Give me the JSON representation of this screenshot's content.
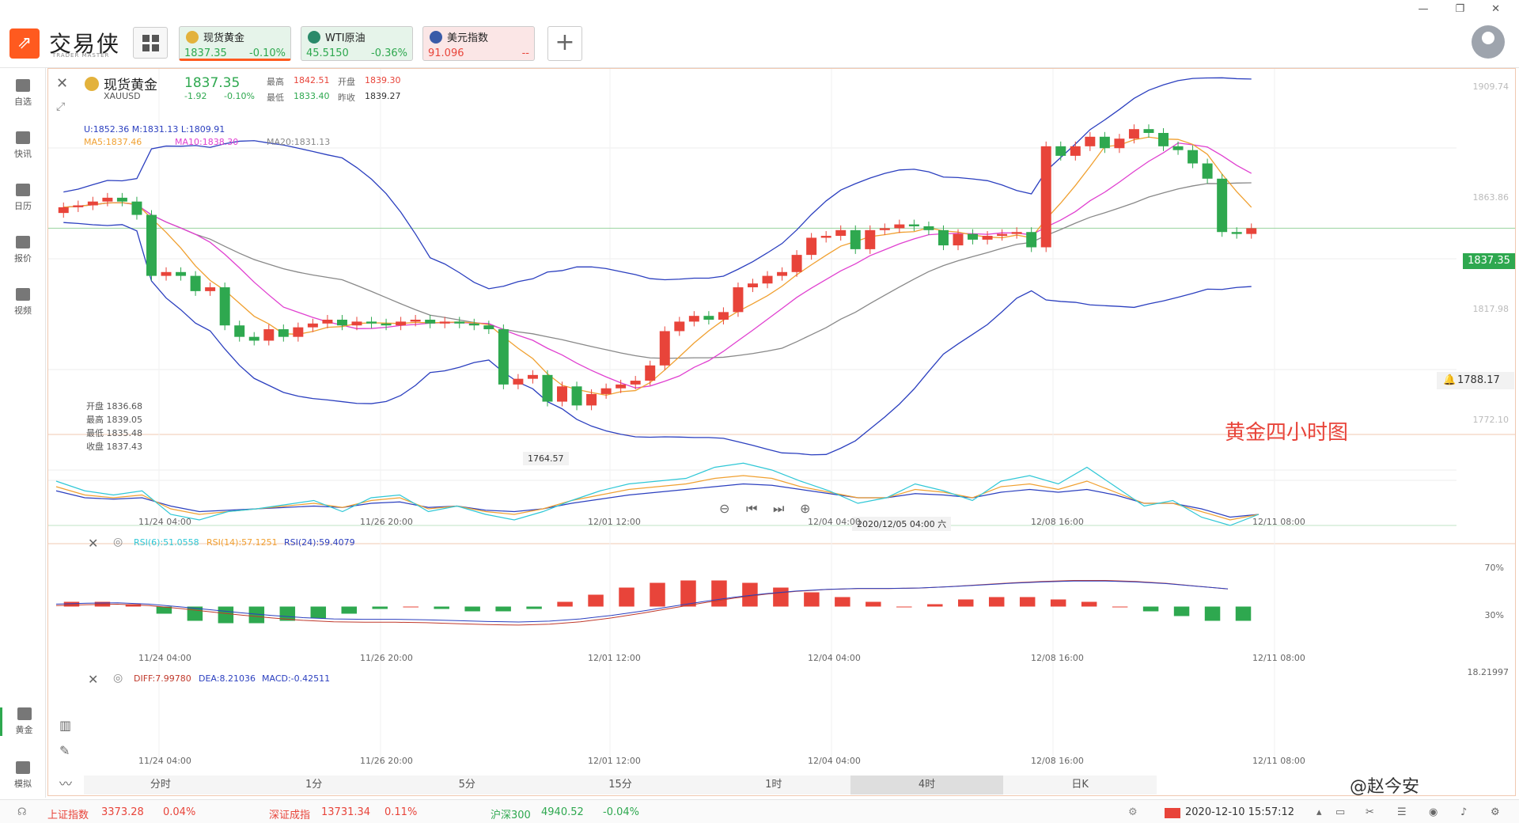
{
  "app": {
    "name": "交易侠",
    "subtitle": "TRADER MASTER",
    "window_controls": [
      "—",
      "❐",
      "✕"
    ]
  },
  "tickers": [
    {
      "name": "现货黄金",
      "price": "1837.35",
      "change": "-0.10%",
      "icon": "gold-coin-icon",
      "color": "#2ea84f",
      "active": true
    },
    {
      "name": "WTI原油",
      "price": "45.5150",
      "change": "-0.36%",
      "icon": "oil-drop-icon",
      "color": "#2ea84f",
      "active": false
    },
    {
      "name": "美元指数",
      "price": "91.096",
      "change": "--",
      "icon": "us-flag-icon",
      "color": "#e8443a",
      "active": false
    }
  ],
  "sidebar": {
    "items": [
      {
        "label": "自选",
        "icon": "star-add-icon"
      },
      {
        "label": "快讯",
        "icon": "news-icon"
      },
      {
        "label": "日历",
        "icon": "calendar-icon"
      },
      {
        "label": "报价",
        "icon": "quote-icon"
      },
      {
        "label": "视频",
        "icon": "video-icon"
      }
    ],
    "bottom": [
      {
        "label": "黄金",
        "icon": "gold-grid-icon"
      },
      {
        "label": "模拟",
        "icon": "simulate-icon"
      }
    ]
  },
  "quote": {
    "name": "现货黄金",
    "code": "XAUUSD",
    "price": "1837.35",
    "change": "-1.92",
    "change_pct": "-0.10%",
    "high_label": "最高",
    "high": "1842.51",
    "open_label": "开盘",
    "open": "1839.30",
    "low_label": "最低",
    "low": "1833.40",
    "prev_label": "昨收",
    "prev": "1839.27"
  },
  "indicators": {
    "boll": "U:1852.36  M:1831.13  L:1809.91",
    "ma5": "MA5:1837.46",
    "ma10": "MA10:1838.30",
    "ma20": "MA20:1831.13",
    "ohlc_box": [
      "开盘 1836.68",
      "最高 1839.05",
      "最低 1835.48",
      "收盘 1837.43"
    ],
    "min_marker": "1764.57",
    "rsi": {
      "r6": "RSI(6):51.0558",
      "r14": "RSI(14):57.1251",
      "r24": "RSI(24):59.4079"
    },
    "macd": {
      "diff": "DIFF:7.99780",
      "dea": "DEA:8.21036",
      "macd": "MACD:-0.42511"
    }
  },
  "price_axis": [
    "1909.74",
    "1863.86",
    "1817.98",
    "1772.10"
  ],
  "rsi_axis": [
    "70%",
    "30%"
  ],
  "macd_axis": [
    "18.21997",
    "-18.21997"
  ],
  "current_price_flag": "1837.35",
  "alert_price": "1788.17",
  "annotation": "黄金四小时图",
  "time_axis": [
    "11/24 04:00",
    "11/26 20:00",
    "12/01 12:00",
    "12/04 04:00",
    "12/08 16:00",
    "12/11 08:00"
  ],
  "crosshair_time": "2020/12/05 04:00 六",
  "timeframes": [
    "分时",
    "1分",
    "5分",
    "15分",
    "1时",
    "4时",
    "日K"
  ],
  "selected_timeframe": "4时",
  "statusbar": {
    "indices": [
      {
        "name": "上证指数",
        "value": "3373.28",
        "change": "0.04%",
        "color": "#e8443a"
      },
      {
        "name": "深证成指",
        "value": "13731.34",
        "change": "0.11%",
        "color": "#e8443a"
      },
      {
        "name": "沪深300",
        "value": "4940.52",
        "change": "-0.04%",
        "color": "#2ea84f"
      }
    ],
    "datetime": "2020-12-10 15:57:12",
    "watermark": "@赵今安"
  },
  "colors": {
    "up": "#e8443a",
    "down": "#2ea84f",
    "boll": "#2b3fbf",
    "ma5": "#f0a030",
    "ma10": "#e040d0",
    "ma20": "#888888"
  },
  "chart_data": {
    "type": "candlestick",
    "title": "现货黄金 XAUUSD 4小时",
    "candles": [
      [
        1845,
        1848
      ],
      [
        1848,
        1849
      ],
      [
        1849,
        1851
      ],
      [
        1851,
        1853
      ],
      [
        1853,
        1851
      ],
      [
        1851,
        1844
      ],
      [
        1844,
        1812
      ],
      [
        1812,
        1814
      ],
      [
        1814,
        1812
      ],
      [
        1812,
        1804
      ],
      [
        1804,
        1806
      ],
      [
        1806,
        1786
      ],
      [
        1786,
        1780
      ],
      [
        1780,
        1778
      ],
      [
        1778,
        1784
      ],
      [
        1784,
        1780
      ],
      [
        1780,
        1785
      ],
      [
        1785,
        1787
      ],
      [
        1787,
        1789
      ],
      [
        1789,
        1786
      ],
      [
        1786,
        1788
      ],
      [
        1788,
        1787
      ],
      [
        1787,
        1786
      ],
      [
        1786,
        1788
      ],
      [
        1788,
        1789
      ],
      [
        1789,
        1787
      ],
      [
        1787,
        1788
      ],
      [
        1788,
        1787
      ],
      [
        1787,
        1786
      ],
      [
        1786,
        1784
      ],
      [
        1784,
        1755
      ],
      [
        1755,
        1758
      ],
      [
        1758,
        1760
      ],
      [
        1760,
        1746
      ],
      [
        1746,
        1754
      ],
      [
        1754,
        1744
      ],
      [
        1744,
        1750
      ],
      [
        1750,
        1753
      ],
      [
        1753,
        1755
      ],
      [
        1755,
        1757
      ],
      [
        1757,
        1765
      ],
      [
        1765,
        1783
      ],
      [
        1783,
        1788
      ],
      [
        1788,
        1791
      ],
      [
        1791,
        1789
      ],
      [
        1789,
        1793
      ],
      [
        1793,
        1806
      ],
      [
        1806,
        1808
      ],
      [
        1808,
        1812
      ],
      [
        1812,
        1814
      ],
      [
        1814,
        1823
      ],
      [
        1823,
        1832
      ],
      [
        1832,
        1833
      ],
      [
        1833,
        1836
      ],
      [
        1836,
        1826
      ],
      [
        1826,
        1836
      ],
      [
        1836,
        1837
      ],
      [
        1837,
        1839
      ],
      [
        1839,
        1838
      ],
      [
        1838,
        1836
      ],
      [
        1836,
        1828
      ],
      [
        1828,
        1834
      ],
      [
        1834,
        1831
      ],
      [
        1831,
        1833
      ],
      [
        1833,
        1834
      ],
      [
        1834,
        1835
      ],
      [
        1835,
        1827
      ],
      [
        1827,
        1880
      ],
      [
        1880,
        1875
      ],
      [
        1875,
        1880
      ],
      [
        1880,
        1885
      ],
      [
        1885,
        1879
      ],
      [
        1879,
        1884
      ],
      [
        1884,
        1889
      ],
      [
        1889,
        1887
      ],
      [
        1887,
        1880
      ],
      [
        1880,
        1878
      ],
      [
        1878,
        1871
      ],
      [
        1871,
        1863
      ],
      [
        1863,
        1835
      ],
      [
        1835,
        1834
      ],
      [
        1834,
        1837
      ]
    ],
    "rsi6": [
      62,
      55,
      52,
      55,
      38,
      34,
      40,
      42,
      45,
      48,
      40,
      50,
      52,
      40,
      44,
      38,
      34,
      40,
      48,
      55,
      60,
      62,
      64,
      72,
      75,
      70,
      62,
      55,
      46,
      50,
      60,
      55,
      48,
      62,
      66,
      60,
      72,
      58,
      44,
      48,
      36,
      30,
      38
    ],
    "rsi14": [
      58,
      52,
      50,
      52,
      42,
      38,
      40,
      42,
      44,
      46,
      43,
      48,
      50,
      42,
      44,
      40,
      38,
      42,
      48,
      52,
      56,
      58,
      60,
      64,
      66,
      64,
      58,
      54,
      50,
      50,
      56,
      54,
      50,
      58,
      60,
      56,
      62,
      54,
      46,
      46,
      40,
      34,
      38
    ],
    "rsi24": [
      55,
      50,
      49,
      50,
      44,
      40,
      41,
      42,
      43,
      44,
      43,
      46,
      47,
      43,
      44,
      41,
      40,
      42,
      46,
      49,
      52,
      54,
      56,
      58,
      60,
      59,
      56,
      53,
      50,
      50,
      53,
      52,
      50,
      54,
      56,
      54,
      56,
      52,
      46,
      46,
      42,
      36,
      38
    ],
    "macd_hist": [
      2,
      2,
      1,
      -3,
      -6,
      -7,
      -7,
      -6,
      -5,
      -3,
      -1,
      0,
      -1,
      -2,
      -2,
      -1,
      2,
      5,
      8,
      10,
      11,
      11,
      10,
      8,
      6,
      4,
      2,
      0,
      1,
      3,
      4,
      4,
      3,
      2,
      0,
      -2,
      -4,
      -6,
      -6
    ],
    "ylim": [
      1740,
      1910
    ],
    "xlabel": "",
    "ylabel": ""
  }
}
